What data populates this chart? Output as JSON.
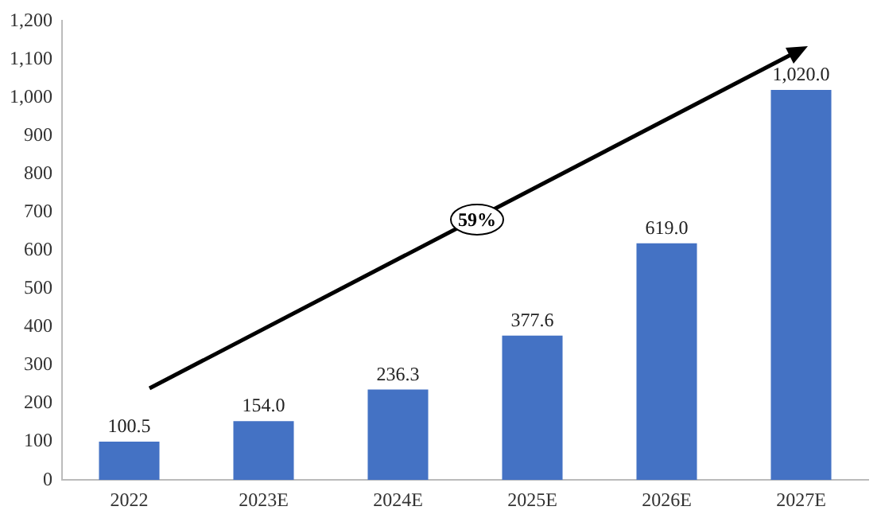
{
  "chart_data": {
    "type": "bar",
    "categories": [
      "2022",
      "2023E",
      "2024E",
      "2025E",
      "2026E",
      "2027E"
    ],
    "values": [
      100.5,
      154.0,
      236.3,
      377.6,
      619.0,
      1020.0
    ],
    "value_labels": [
      "100.5",
      "154.0",
      "236.3",
      "377.6",
      "619.0",
      "1,020.0"
    ],
    "color": "#4472c4",
    "ylim": [
      0,
      1200
    ],
    "yticks": [
      0,
      100,
      200,
      300,
      400,
      500,
      600,
      700,
      800,
      900,
      {
        "value": 1000,
        "label": "1,000"
      },
      {
        "value": 1100,
        "label": "1,100"
      },
      {
        "value": 1200,
        "label": "1,200"
      }
    ],
    "grid": false,
    "legend": false,
    "annotations": [
      "59%"
    ]
  }
}
